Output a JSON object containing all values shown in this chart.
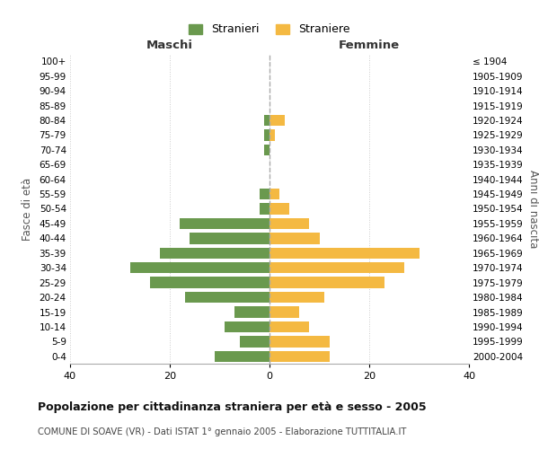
{
  "age_groups": [
    "0-4",
    "5-9",
    "10-14",
    "15-19",
    "20-24",
    "25-29",
    "30-34",
    "35-39",
    "40-44",
    "45-49",
    "50-54",
    "55-59",
    "60-64",
    "65-69",
    "70-74",
    "75-79",
    "80-84",
    "85-89",
    "90-94",
    "95-99",
    "100+"
  ],
  "birth_years": [
    "2000-2004",
    "1995-1999",
    "1990-1994",
    "1985-1989",
    "1980-1984",
    "1975-1979",
    "1970-1974",
    "1965-1969",
    "1960-1964",
    "1955-1959",
    "1950-1954",
    "1945-1949",
    "1940-1944",
    "1935-1939",
    "1930-1934",
    "1925-1929",
    "1920-1924",
    "1915-1919",
    "1910-1914",
    "1905-1909",
    "≤ 1904"
  ],
  "stranieri": [
    11,
    6,
    9,
    7,
    17,
    24,
    28,
    22,
    16,
    18,
    2,
    2,
    0,
    0,
    1,
    1,
    1,
    0,
    0,
    0,
    0
  ],
  "straniere": [
    12,
    12,
    8,
    6,
    11,
    23,
    27,
    30,
    10,
    8,
    4,
    2,
    0,
    0,
    0,
    1,
    3,
    0,
    0,
    0,
    0
  ],
  "color_stranieri": "#6a994e",
  "color_straniere": "#f4b942",
  "xlim": 40,
  "title": "Popolazione per cittadinanza straniera per età e sesso - 2005",
  "subtitle": "COMUNE DI SOAVE (VR) - Dati ISTAT 1° gennaio 2005 - Elaborazione TUTTITALIA.IT",
  "label_maschi": "Maschi",
  "label_femmine": "Femmine",
  "label_stranieri": "Stranieri",
  "label_straniere": "Straniere",
  "ylabel_left": "Fasce di età",
  "ylabel_right": "Anni di nascita",
  "bg_color": "#ffffff",
  "grid_color": "#cccccc",
  "bar_height": 0.75
}
